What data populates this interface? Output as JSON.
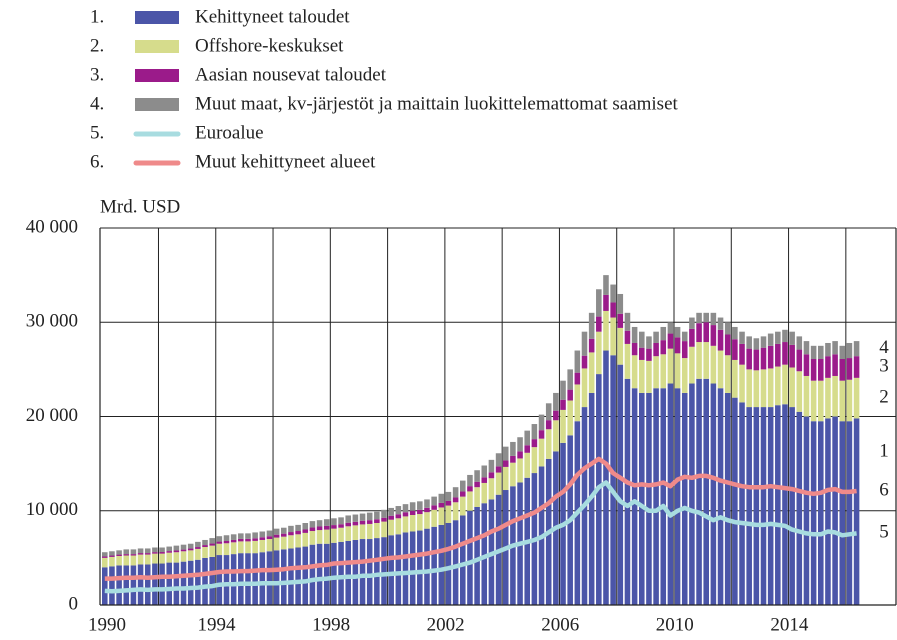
{
  "chart_data": {
    "type": "stacked_bar_line",
    "ylabel": "Mrd. USD",
    "categories": [
      "1990",
      null,
      null,
      null,
      null,
      null,
      null,
      null,
      null,
      null,
      null,
      null,
      null,
      null,
      null,
      null,
      "1994",
      null,
      null,
      null,
      null,
      null,
      null,
      null,
      null,
      null,
      null,
      null,
      null,
      null,
      null,
      null,
      "1998",
      null,
      null,
      null,
      null,
      null,
      null,
      null,
      null,
      null,
      null,
      null,
      null,
      null,
      null,
      null,
      "2002",
      null,
      null,
      null,
      null,
      null,
      null,
      null,
      null,
      null,
      null,
      null,
      null,
      null,
      null,
      null,
      "2006",
      null,
      null,
      null,
      null,
      null,
      null,
      null,
      null,
      null,
      null,
      null,
      null,
      null,
      null,
      null,
      "2010",
      null,
      null,
      null,
      null,
      null,
      null,
      null,
      null,
      null,
      null,
      null,
      null,
      null,
      null,
      null,
      "2014",
      null,
      null,
      null,
      null,
      null,
      null,
      null,
      null,
      null
    ],
    "ylim": [
      0,
      40000
    ],
    "yticks": [
      0,
      {
        "value": 10000,
        "label": "10 000"
      },
      {
        "value": 20000,
        "label": "20 000"
      },
      {
        "value": 30000,
        "label": "30 000"
      },
      {
        "value": 40000,
        "label": "40 000"
      }
    ],
    "grid": true,
    "series": [
      {
        "name": "Kehittyneet taloudet",
        "legend_number": "1.",
        "end_label": "1",
        "kind": "bar",
        "color": "#4b55a8",
        "values": [
          4000,
          4100,
          4200,
          4200,
          4200,
          4300,
          4300,
          4400,
          4400,
          4500,
          4500,
          4600,
          4700,
          4800,
          5000,
          5100,
          5300,
          5300,
          5400,
          5500,
          5500,
          5500,
          5600,
          5700,
          5800,
          5900,
          6000,
          6100,
          6200,
          6400,
          6500,
          6500,
          6600,
          6700,
          6800,
          6900,
          7000,
          7000,
          7100,
          7200,
          7400,
          7500,
          7700,
          7800,
          7900,
          8100,
          8300,
          8500,
          8700,
          9000,
          9500,
          10000,
          10400,
          10800,
          11200,
          11700,
          12200,
          12600,
          13000,
          13500,
          14000,
          14700,
          15500,
          16300,
          17200,
          18000,
          19500,
          21000,
          22500,
          24500,
          27000,
          26500,
          25500,
          24000,
          23000,
          22500,
          22500,
          23000,
          23000,
          23500,
          23000,
          22500,
          23500,
          24000,
          24000,
          23500,
          23000,
          22500,
          22000,
          21500,
          21000,
          21000,
          21000,
          21000,
          21200,
          21300,
          21000,
          20500,
          20000,
          19500,
          19500,
          19800,
          20000,
          19500,
          19500,
          19800
        ]
      },
      {
        "name": "Offshore-keskukset",
        "legend_number": "2.",
        "end_label": "2",
        "kind": "bar",
        "color": "#d6dc8c",
        "values": [
          1000,
          1000,
          1000,
          1050,
          1050,
          1050,
          1050,
          1050,
          1050,
          1050,
          1100,
          1100,
          1100,
          1150,
          1150,
          1200,
          1200,
          1250,
          1250,
          1250,
          1250,
          1300,
          1300,
          1300,
          1350,
          1350,
          1400,
          1400,
          1450,
          1450,
          1450,
          1500,
          1500,
          1500,
          1550,
          1550,
          1550,
          1600,
          1600,
          1650,
          1650,
          1700,
          1700,
          1750,
          1750,
          1750,
          1800,
          1850,
          1850,
          1900,
          2000,
          2050,
          2100,
          2150,
          2250,
          2350,
          2450,
          2500,
          2550,
          2650,
          2750,
          2950,
          3150,
          3300,
          3500,
          3700,
          3900,
          4100,
          4300,
          4500,
          4200,
          4000,
          3900,
          3700,
          3500,
          3500,
          3400,
          3400,
          3600,
          3700,
          3700,
          3700,
          3900,
          3900,
          3900,
          4000,
          4000,
          4000,
          4000,
          4000,
          4000,
          3900,
          4000,
          4100,
          4100,
          4200,
          4200,
          4300,
          4300,
          4300,
          4300,
          4300,
          4300,
          4300,
          4400,
          4300
        ]
      },
      {
        "name": "Aasian nousevat taloudet",
        "legend_number": "3.",
        "end_label": "3",
        "kind": "bar",
        "color": "#9b1b8a",
        "values": [
          150,
          150,
          150,
          150,
          150,
          160,
          160,
          160,
          170,
          170,
          180,
          180,
          190,
          200,
          210,
          220,
          230,
          240,
          250,
          260,
          270,
          280,
          290,
          300,
          310,
          320,
          340,
          350,
          360,
          370,
          380,
          390,
          380,
          370,
          380,
          380,
          390,
          400,
          400,
          410,
          420,
          430,
          440,
          450,
          450,
          460,
          470,
          480,
          490,
          510,
          540,
          560,
          580,
          600,
          630,
          660,
          690,
          720,
          750,
          800,
          850,
          900,
          960,
          1020,
          1080,
          1150,
          1250,
          1350,
          1450,
          1600,
          1700,
          1600,
          1500,
          1400,
          1300,
          1300,
          1300,
          1400,
          1500,
          1600,
          1700,
          1800,
          1900,
          2000,
          2100,
          2200,
          2200,
          2200,
          2200,
          2200,
          2200,
          2200,
          2300,
          2400,
          2400,
          2400,
          2400,
          2300,
          2300,
          2300,
          2300,
          2300,
          2300,
          2300,
          2300,
          2300
        ]
      },
      {
        "name": "Muut maat, kv-järjestöt ja maittain luokittelemattomat saamiset",
        "legend_number": "4.",
        "end_label": "4",
        "kind": "bar",
        "color": "#8c8c8c",
        "values": [
          450,
          450,
          450,
          500,
          500,
          490,
          490,
          490,
          480,
          480,
          520,
          520,
          510,
          550,
          540,
          580,
          570,
          610,
          600,
          590,
          580,
          620,
          610,
          600,
          640,
          630,
          660,
          650,
          690,
          680,
          670,
          710,
          720,
          730,
          770,
          770,
          760,
          800,
          800,
          840,
          830,
          870,
          860,
          900,
          900,
          890,
          930,
          970,
          960,
          1090,
          1160,
          1190,
          1220,
          1250,
          1320,
          1390,
          1460,
          1480,
          1500,
          1550,
          1600,
          1650,
          1790,
          1880,
          2020,
          2150,
          2350,
          2550,
          2750,
          2900,
          2100,
          1900,
          2100,
          1900,
          1700,
          1700,
          1300,
          1200,
          1400,
          1200,
          1100,
          1000,
          1200,
          1100,
          1000,
          1300,
          1300,
          1300,
          1300,
          1300,
          1300,
          1200,
          1200,
          1300,
          1300,
          1300,
          1400,
          1400,
          1400,
          1400,
          1400,
          1400,
          1400,
          1400,
          1600,
          1600
        ]
      },
      {
        "name": "Euroalue",
        "legend_number": "5.",
        "end_label": "5",
        "kind": "line",
        "color": "#a8dce0",
        "values": [
          1500,
          1450,
          1500,
          1550,
          1600,
          1650,
          1600,
          1650,
          1650,
          1700,
          1750,
          1750,
          1800,
          1850,
          1950,
          2000,
          2150,
          2200,
          2200,
          2250,
          2250,
          2250,
          2300,
          2300,
          2300,
          2350,
          2400,
          2450,
          2500,
          2650,
          2750,
          2800,
          2900,
          2950,
          3000,
          3000,
          3100,
          3100,
          3200,
          3250,
          3300,
          3350,
          3400,
          3450,
          3500,
          3550,
          3650,
          3750,
          3900,
          4100,
          4300,
          4500,
          4800,
          5100,
          5400,
          5700,
          6000,
          6300,
          6500,
          6700,
          6900,
          7200,
          7700,
          8200,
          8500,
          9000,
          9800,
          10600,
          11500,
          12500,
          13000,
          12000,
          11000,
          10500,
          11000,
          10500,
          10000,
          10000,
          10500,
          9500,
          10000,
          10300,
          10000,
          9800,
          9400,
          9000,
          9300,
          9000,
          8800,
          8700,
          8600,
          8500,
          8500,
          8600,
          8500,
          8400,
          8000,
          7800,
          7600,
          7500,
          7500,
          7800,
          7700,
          7400,
          7500,
          7600
        ]
      },
      {
        "name": "Muut kehittyneet alueet",
        "legend_number": "6.",
        "end_label": "6",
        "kind": "line",
        "color": "#ef8a8a",
        "values": [
          2800,
          2800,
          2850,
          2900,
          2900,
          2950,
          2900,
          2950,
          3000,
          3000,
          3050,
          3100,
          3150,
          3200,
          3300,
          3400,
          3500,
          3550,
          3550,
          3600,
          3600,
          3650,
          3700,
          3700,
          3750,
          3800,
          3900,
          3950,
          4000,
          4100,
          4200,
          4250,
          4400,
          4450,
          4500,
          4550,
          4600,
          4700,
          4800,
          4900,
          5000,
          5050,
          5150,
          5250,
          5350,
          5450,
          5600,
          5750,
          5950,
          6200,
          6500,
          6800,
          7100,
          7400,
          7800,
          8100,
          8500,
          8900,
          9200,
          9500,
          9800,
          10300,
          10800,
          11500,
          12000,
          12800,
          13800,
          14500,
          15000,
          15500,
          15000,
          14000,
          13500,
          13000,
          12700,
          12800,
          12700,
          12800,
          13000,
          12600,
          13300,
          13600,
          13500,
          13700,
          13700,
          13500,
          13200,
          13000,
          12800,
          12600,
          12500,
          12500,
          12500,
          12600,
          12500,
          12400,
          12300,
          12100,
          11900,
          11800,
          11900,
          12200,
          12300,
          12000,
          12000,
          12100
        ]
      }
    ]
  }
}
